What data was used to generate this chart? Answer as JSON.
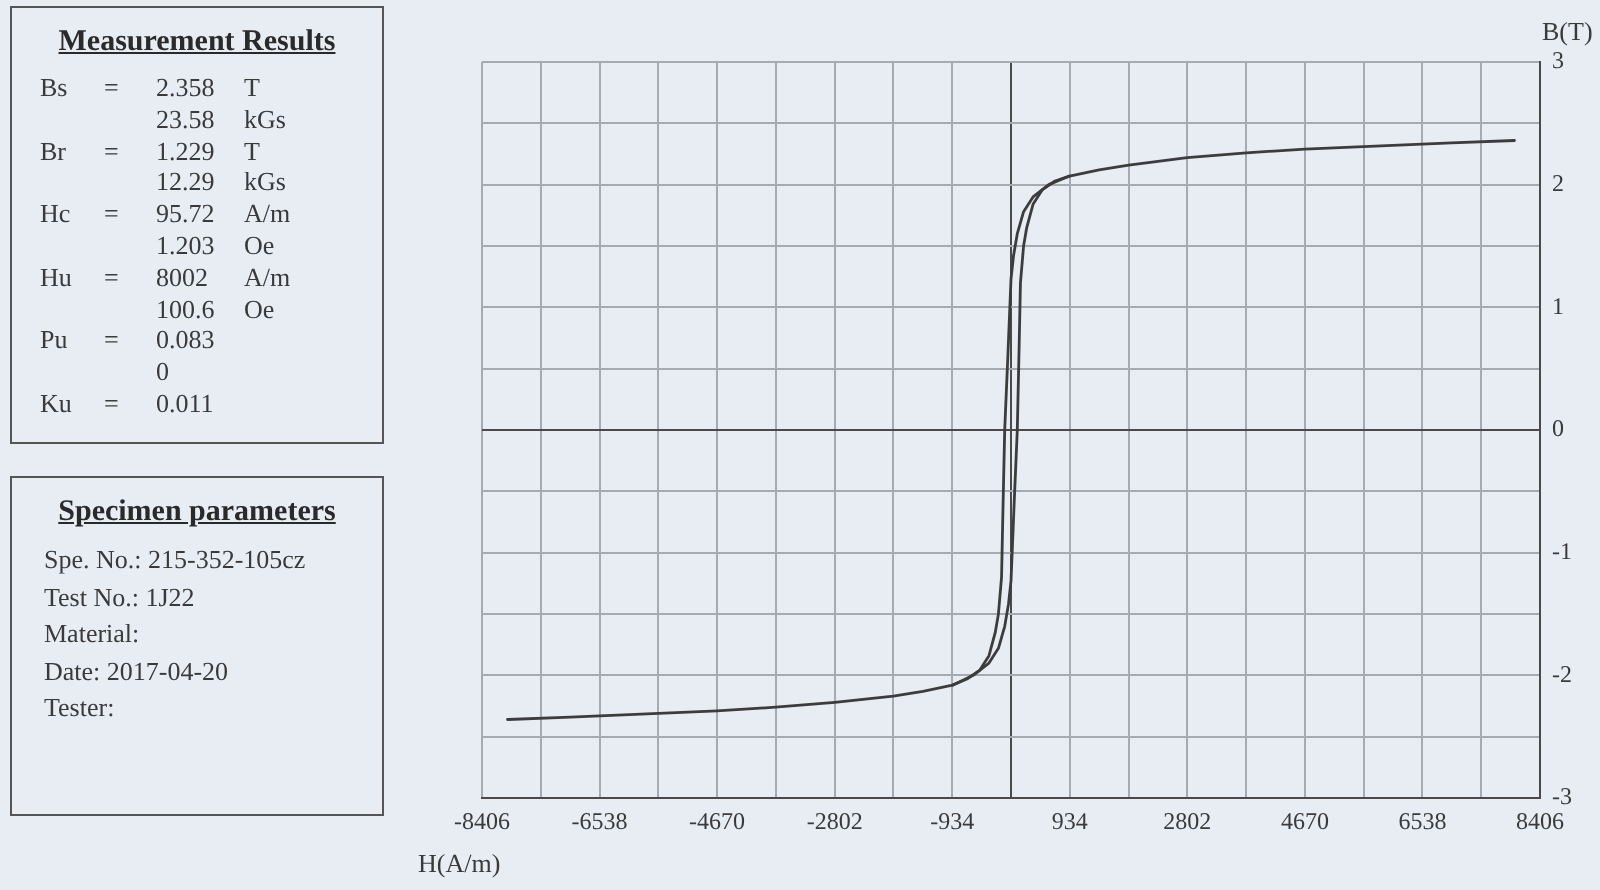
{
  "chart_data": [
    {
      "type": "other",
      "title": "Measurement Results",
      "annotations": [
        "Bs\t=\t2.358\tT",
        "\t\t23.58\tkGs",
        "Br\t=\t1.229\tT",
        "\t\t12.29\tkGs",
        "Hc\t=\t95.72\tA/m",
        "\t\t1.203\tOe",
        "Hu\t=\t8002\tA/m",
        "\t\t100.6\tOe",
        "Pu\t=\t0.083",
        "\t\t0",
        "Ku\t=\t0.011"
      ]
    },
    {
      "type": "other",
      "title": "Specimen parameters",
      "annotations": [
        "Spe. No.: 215-352-105cz",
        "Test No.: 1J22",
        "Material:",
        "Date: 2017-04-20",
        "Tester:"
      ]
    },
    {
      "type": "line",
      "xlabel": "H(A/m)",
      "ylabel": "B(T)",
      "series": [
        {
          "color": "#3c3c3c",
          "x": [
            8000,
            7000,
            5600,
            4670,
            3740,
            2800,
            1870,
            1400,
            930,
            600,
            350,
            200,
            100,
            40,
            0,
            -50,
            -100,
            -130,
            -150,
            -200,
            -250,
            -350,
            -500,
            -700,
            -930,
            -1400,
            -1870,
            -2800,
            -3740,
            -4670,
            -5600,
            -7000,
            -8000
          ],
          "values": [
            2.36,
            2.34,
            2.31,
            2.29,
            2.26,
            2.22,
            2.16,
            2.12,
            2.07,
            2.0,
            1.9,
            1.78,
            1.6,
            1.42,
            1.23,
            0.6,
            0,
            -0.7,
            -1.2,
            -1.5,
            -1.65,
            -1.84,
            -1.96,
            -2.03,
            -2.08,
            -2.13,
            -2.17,
            -2.22,
            -2.26,
            -2.29,
            -2.31,
            -2.34,
            -2.36
          ]
        },
        {
          "color": "#3c3c3c",
          "x": [
            -930,
            -600,
            -350,
            -200,
            -100,
            -40,
            0,
            50,
            100,
            130,
            150,
            200,
            250,
            350,
            500,
            700,
            930
          ],
          "values": [
            -2.08,
            -2.0,
            -1.9,
            -1.78,
            -1.6,
            -1.42,
            -1.23,
            -0.6,
            0,
            0.7,
            1.2,
            1.5,
            1.65,
            1.84,
            1.96,
            2.03,
            2.07
          ]
        }
      ],
      "xlim": [
        -8406,
        8406
      ],
      "xticks": [
        -8406,
        {
          "value": -7472,
          "label": null
        },
        -6538,
        {
          "value": -5604,
          "label": null
        },
        -4670,
        {
          "value": -3736,
          "label": null
        },
        -2802,
        {
          "value": -1868,
          "label": null
        },
        -934,
        {
          "value": 0,
          "label": null
        },
        934,
        {
          "value": 1868,
          "label": null
        },
        2802,
        {
          "value": 3736,
          "label": null
        },
        4670,
        {
          "value": 5604,
          "label": null
        },
        6538,
        {
          "value": 7472,
          "label": null
        },
        8406
      ],
      "ylim": [
        -3,
        3
      ],
      "yticks": [
        -3,
        {
          "value": -2.5,
          "label": null
        },
        -2,
        {
          "value": -1.5,
          "label": null
        },
        -1,
        {
          "value": -0.5,
          "label": null
        },
        0,
        {
          "value": 0.5,
          "label": null
        },
        1,
        {
          "value": 1.5,
          "label": null
        },
        2,
        {
          "value": 2.5,
          "label": null
        },
        3
      ],
      "grid": true,
      "marker": "none",
      "line_style": "solid"
    }
  ]
}
